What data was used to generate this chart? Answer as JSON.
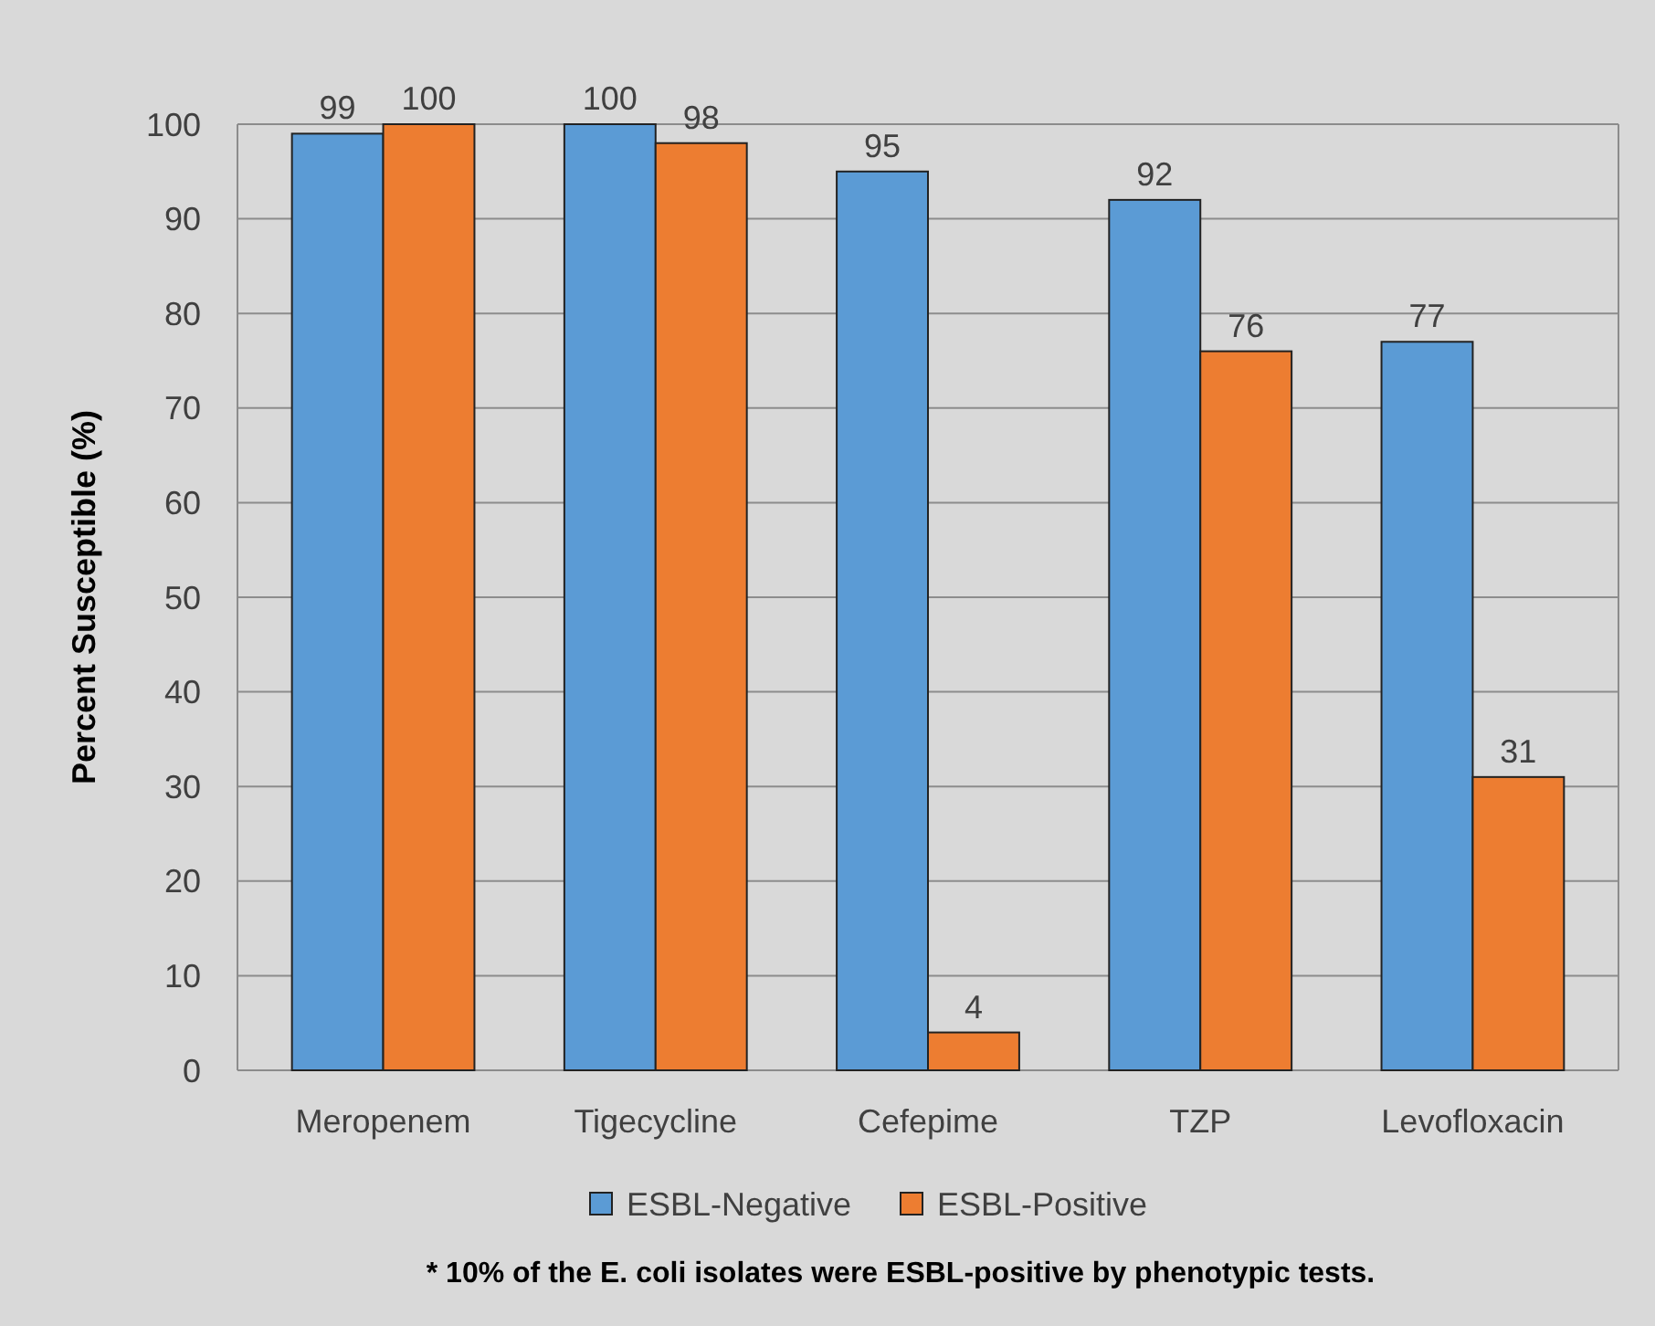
{
  "chart_data": {
    "type": "bar",
    "ylabel": "Percent Susceptible (%)",
    "categories": [
      "Meropenem",
      "Tigecycline",
      "Cefepime",
      "TZP",
      "Levofloxacin"
    ],
    "series": [
      {
        "name": "ESBL-Negative",
        "color": "#5b9bd5",
        "values": [
          99,
          100,
          95,
          92,
          77
        ]
      },
      {
        "name": "ESBL-Positive",
        "color": "#ed7d31",
        "values": [
          100,
          98,
          4,
          76,
          31
        ]
      }
    ],
    "ylim": [
      0,
      100
    ],
    "yticks": [
      0,
      10,
      20,
      30,
      40,
      50,
      60,
      70,
      80,
      90,
      100
    ],
    "grid": "y",
    "legend": "bottom",
    "data_labels": true,
    "annotations": [
      "* 10% of the E. coli isolates were ESBL-positive by phenotypic tests."
    ]
  }
}
